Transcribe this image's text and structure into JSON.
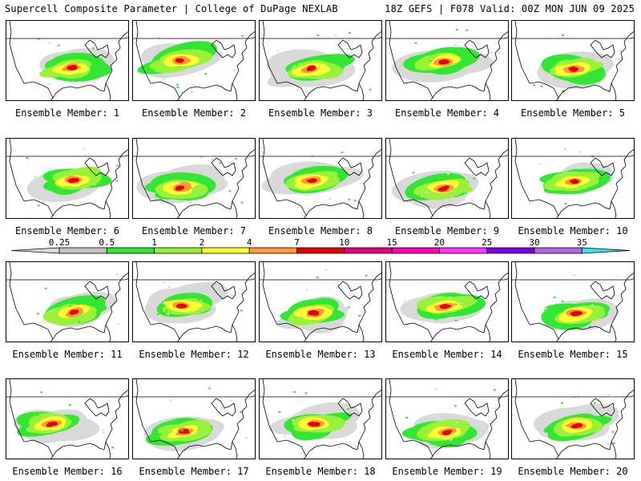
{
  "header": {
    "title": "Supercell Composite Parameter | College of DuPage NEXLAB",
    "valid": "18Z GEFS | F078 Valid: 00Z MON JUN 09 2025"
  },
  "legend": {
    "ticks": [
      "0.25",
      "0.5",
      "1",
      "2",
      "4",
      "7",
      "10",
      "15",
      "20",
      "25",
      "30",
      "35"
    ],
    "colors": [
      "#d9d9d9",
      "#c3c3c3",
      "#33e633",
      "#99f23a",
      "#ffff33",
      "#ff9933",
      "#e60000",
      "#e6007a",
      "#ff00b4",
      "#ff33ff",
      "#7a00e6",
      "#b266e6",
      "#33e6e6"
    ]
  },
  "members": [
    "Ensemble Member: 1",
    "Ensemble Member: 2",
    "Ensemble Member: 3",
    "Ensemble Member: 4",
    "Ensemble Member: 5",
    "Ensemble Member: 6",
    "Ensemble Member: 7",
    "Ensemble Member: 8",
    "Ensemble Member: 9",
    "Ensemble Member: 10",
    "Ensemble Member: 11",
    "Ensemble Member: 12",
    "Ensemble Member: 13",
    "Ensemble Member: 14",
    "Ensemble Member: 15",
    "Ensemble Member: 16",
    "Ensemble Member: 17",
    "Ensemble Member: 18",
    "Ensemble Member: 19",
    "Ensemble Member: 20"
  ]
}
